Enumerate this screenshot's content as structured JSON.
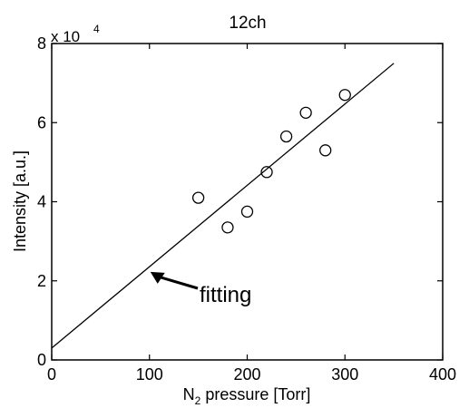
{
  "chart_data": {
    "type": "scatter",
    "title": "12ch",
    "xlabel_main": "N",
    "xlabel_sub": "2",
    "xlabel_rest": " pressure [Torr]",
    "ylabel": "Intensity [a.u.]",
    "y_multiplier_base": "x 10",
    "y_multiplier_exp": "4",
    "xlim": [
      0,
      400
    ],
    "ylim": [
      0,
      8
    ],
    "x_ticks": [
      0,
      100,
      200,
      300,
      400
    ],
    "y_ticks": [
      0,
      2,
      4,
      6,
      8
    ],
    "x_tick_labels": [
      "0",
      "100",
      "200",
      "300",
      "400"
    ],
    "y_tick_labels": [
      "0",
      "2",
      "4",
      "6",
      "8"
    ],
    "grid": false,
    "points": [
      {
        "x": 150,
        "y": 4.1
      },
      {
        "x": 180,
        "y": 3.35
      },
      {
        "x": 200,
        "y": 3.75
      },
      {
        "x": 220,
        "y": 4.75
      },
      {
        "x": 240,
        "y": 5.65
      },
      {
        "x": 260,
        "y": 6.25
      },
      {
        "x": 280,
        "y": 5.3
      },
      {
        "x": 300,
        "y": 6.7
      }
    ],
    "fit_line": {
      "x": [
        0,
        350
      ],
      "y": [
        0.3,
        7.5
      ]
    },
    "annotation": {
      "text": "fitting",
      "x": 100,
      "y": 2.25
    }
  }
}
